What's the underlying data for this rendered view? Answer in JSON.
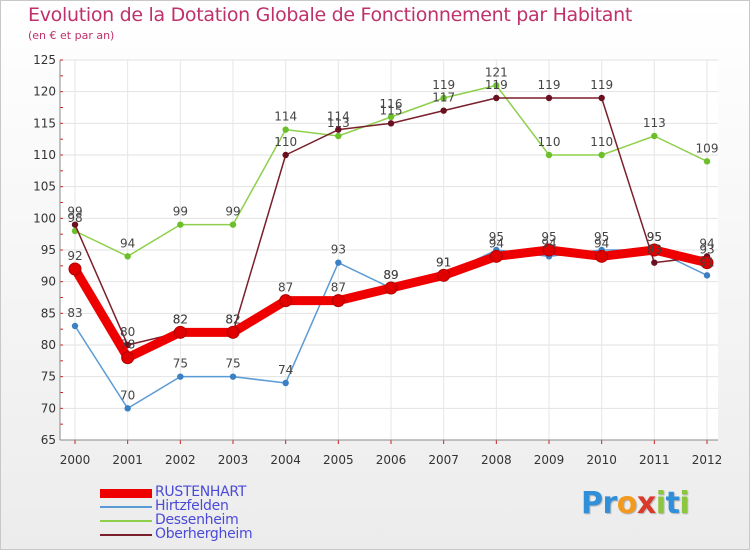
{
  "title": "Evolution de la Dotation Globale de Fonctionnement par Habitant",
  "subtitle": "(en € et par an)",
  "logo": {
    "text": "Proxiti",
    "letters": [
      {
        "ch": "P",
        "color": "#2f8fd8"
      },
      {
        "ch": "r",
        "color": "#2f8fd8"
      },
      {
        "ch": "o",
        "color": "#f39a1e"
      },
      {
        "ch": "x",
        "color": "#d93a2b"
      },
      {
        "ch": "i",
        "color": "#8cc63f"
      },
      {
        "ch": "t",
        "color": "#2f8fd8"
      },
      {
        "ch": "i",
        "color": "#8cc63f"
      }
    ]
  },
  "chart_data": {
    "type": "line",
    "title": "Evolution de la Dotation Globale de Fonctionnement par Habitant",
    "subtitle": "(en € et par an)",
    "xlabel": "",
    "ylabel": "",
    "ylim": [
      65,
      125
    ],
    "yticks": [
      65,
      70,
      75,
      80,
      85,
      90,
      95,
      100,
      105,
      110,
      115,
      120,
      125
    ],
    "categories": [
      "2000",
      "2001",
      "2002",
      "2003",
      "2004",
      "2005",
      "2006",
      "2007",
      "2008",
      "2009",
      "2010",
      "2011",
      "2012"
    ],
    "legend_position": "bottom-left",
    "series": [
      {
        "name": "Hirtzfelden",
        "color": "#5b9bd5",
        "marker": "#3b7fc4",
        "values": [
          83,
          70,
          75,
          75,
          74,
          93,
          89,
          91,
          95,
          94,
          95,
          95,
          91
        ],
        "labels": [
          "83",
          "70",
          "75",
          "75",
          "74",
          "93",
          "89",
          "91",
          "95",
          "94",
          "95",
          "95",
          "91"
        ]
      },
      {
        "name": "Dessenheim",
        "color": "#8ed04b",
        "marker": "#6cbf2a",
        "values": [
          98,
          94,
          99,
          99,
          114,
          113,
          116,
          119,
          121,
          110,
          110,
          113,
          109
        ],
        "labels": [
          "98",
          "94",
          "99",
          "99",
          "114",
          "113",
          "116",
          "119",
          "121",
          "110",
          "110",
          "113",
          "109"
        ]
      },
      {
        "name": "Oberhergheim",
        "color": "#7a1f2b",
        "marker": "#6a1020",
        "values": [
          99,
          80,
          82,
          82,
          110,
          114,
          115,
          117,
          119,
          119,
          119,
          93,
          94
        ],
        "labels": [
          "99",
          "80",
          "82",
          "82",
          "110",
          "114",
          "115",
          "117",
          "119",
          "119",
          "119",
          "93",
          "94"
        ]
      },
      {
        "name": "RUSTENHART",
        "color": "#ee0000",
        "marker": "#e00000",
        "values": [
          92,
          78,
          82,
          82,
          87,
          87,
          89,
          91,
          94,
          95,
          94,
          95,
          93
        ],
        "labels": [
          "92",
          "78",
          "82",
          "82",
          "87",
          "87",
          "89",
          "91",
          "94",
          "95",
          "94",
          "95",
          "93"
        ]
      }
    ],
    "legend_order": [
      "RUSTENHART",
      "Hirtzfelden",
      "Dessenheim",
      "Oberhergheim"
    ]
  }
}
